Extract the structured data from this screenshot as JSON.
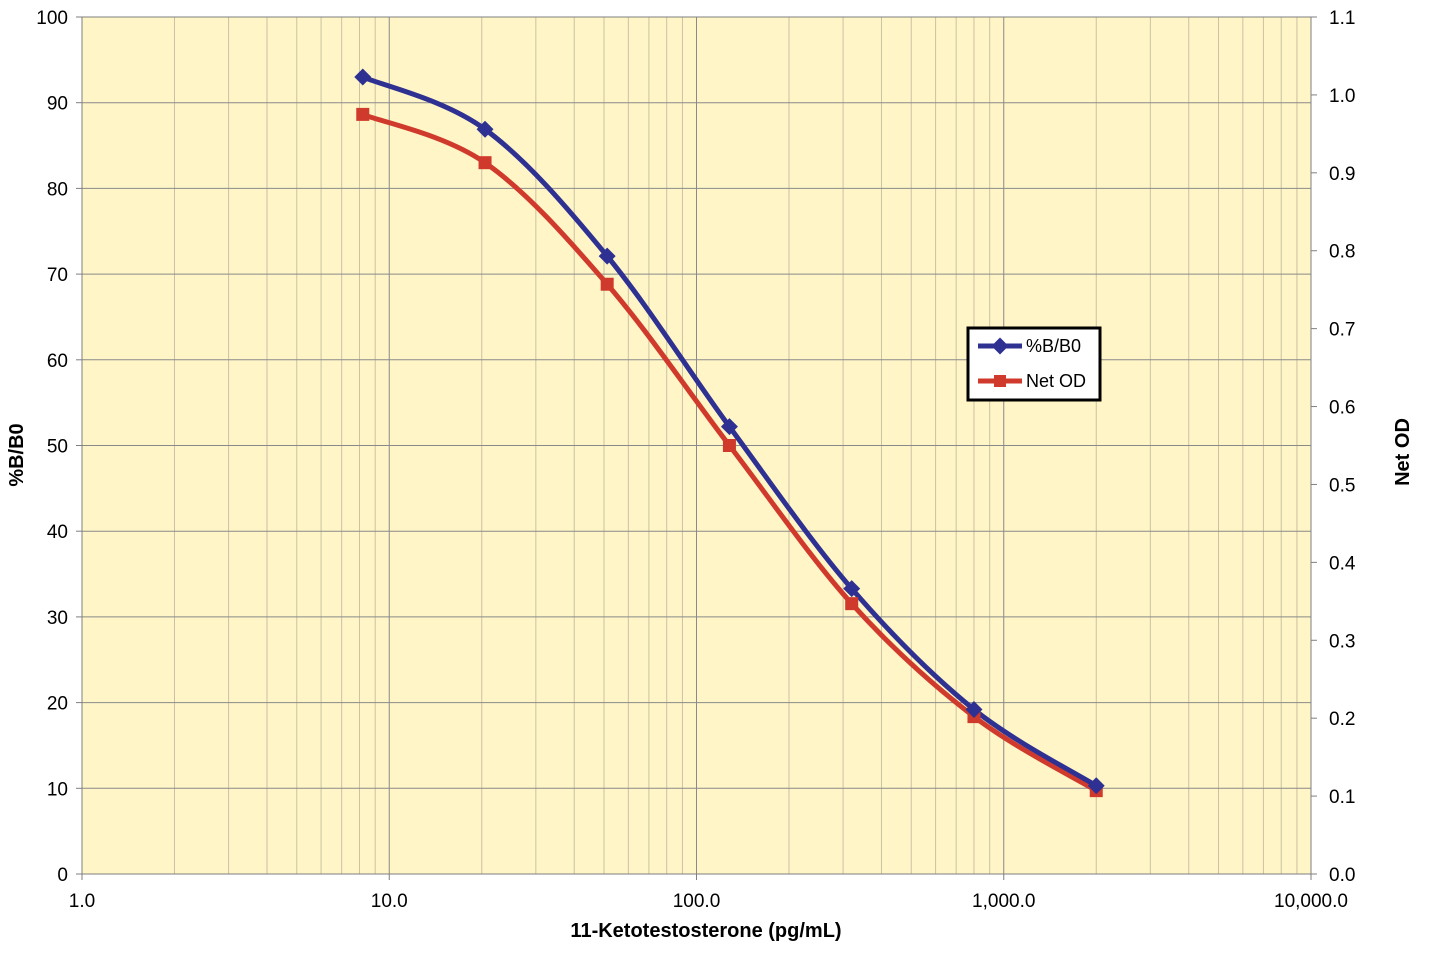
{
  "chart_data": {
    "type": "line",
    "title": "",
    "xlabel": "11-Ketotestosterone (pg/mL)",
    "ylabel": "%B/B0",
    "y2label": "Net OD",
    "x_scale": "log",
    "xlim": [
      1,
      10000
    ],
    "ylim": [
      0,
      100
    ],
    "y2lim": [
      0,
      1.1
    ],
    "x_ticks": [
      "1.0",
      "10.0",
      "100.0",
      "1,000.0",
      "10,000.0"
    ],
    "y_ticks": [
      "0",
      "10",
      "20",
      "30",
      "40",
      "50",
      "60",
      "70",
      "80",
      "90",
      "100"
    ],
    "y2_ticks": [
      "0.0",
      "0.1",
      "0.2",
      "0.3",
      "0.4",
      "0.5",
      "0.6",
      "0.7",
      "0.8",
      "0.9",
      "1.0",
      "1.1"
    ],
    "grid": true,
    "plot_background": "#FFF5C6",
    "legend_position": "center-right",
    "series": [
      {
        "name": "%B/B0",
        "axis": "left",
        "color": "#2E3192",
        "marker": "diamond",
        "x": [
          8.2,
          20.5,
          51.2,
          128,
          320,
          800,
          2000
        ],
        "y": [
          93.0,
          86.9,
          72.1,
          52.2,
          33.3,
          19.2,
          10.3
        ]
      },
      {
        "name": "Net OD",
        "axis": "right",
        "color": "#D03A2C",
        "marker": "square",
        "x": [
          8.2,
          20.5,
          51.2,
          128,
          320,
          800,
          2000
        ],
        "y": [
          0.975,
          0.913,
          0.757,
          0.55,
          0.347,
          0.202,
          0.107
        ]
      }
    ]
  }
}
